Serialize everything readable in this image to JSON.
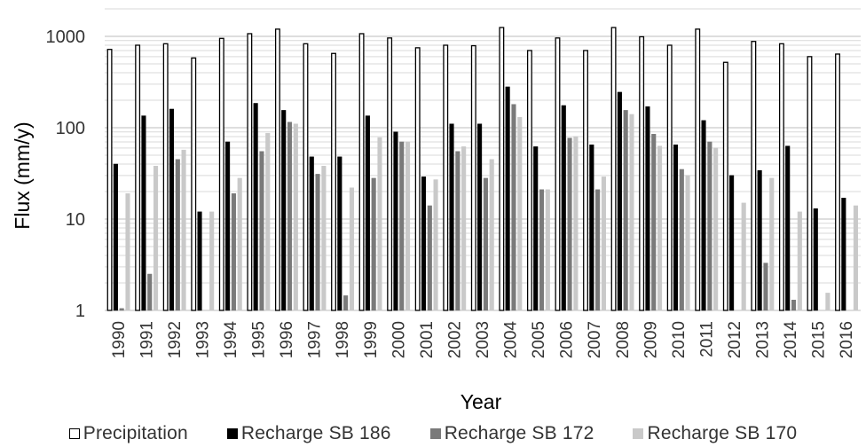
{
  "chart_data": {
    "type": "bar",
    "title": "",
    "xlabel": "Year",
    "ylabel": "Flux (mm/y)",
    "yscale": "log",
    "ylim": [
      1,
      2000
    ],
    "yticks": [
      "1",
      "10",
      "100",
      "1000"
    ],
    "grid": "horizontal",
    "legend_position": "bottom",
    "categories": [
      "1990",
      "1991",
      "1992",
      "1993",
      "1994",
      "1995",
      "1996",
      "1997",
      "1998",
      "1999",
      "2000",
      "2001",
      "2002",
      "2003",
      "2004",
      "2005",
      "2006",
      "2007",
      "2008",
      "2009",
      "2010",
      "2011",
      "2012",
      "2013",
      "2014",
      "2015",
      "2016"
    ],
    "series": [
      {
        "name": "Precipitation",
        "fill": "#ffffff",
        "stroke": "#000000",
        "values": [
          720,
          800,
          830,
          580,
          950,
          1070,
          1200,
          830,
          650,
          1070,
          960,
          750,
          800,
          790,
          1250,
          700,
          960,
          700,
          1250,
          990,
          800,
          1200,
          520,
          880,
          830,
          600,
          640
        ]
      },
      {
        "name": "Recharge SB 186",
        "fill": "#000000",
        "stroke": "#000000",
        "values": [
          40,
          135,
          160,
          12,
          70,
          185,
          155,
          48,
          48,
          135,
          90,
          29,
          110,
          110,
          280,
          62,
          175,
          65,
          245,
          170,
          65,
          120,
          30,
          34,
          63,
          13,
          17
        ]
      },
      {
        "name": "Recharge SB 172",
        "fill": "#7a7a7a",
        "stroke": "#7a7a7a",
        "values": [
          1.05,
          2.5,
          45,
          null,
          19,
          55,
          115,
          31,
          1.45,
          28,
          70,
          14,
          55,
          28,
          180,
          21,
          77,
          21,
          155,
          85,
          35,
          70,
          null,
          3.3,
          1.3,
          null,
          null
        ]
      },
      {
        "name": "Recharge SB 170",
        "fill": "#c9c9c9",
        "stroke": "#c9c9c9",
        "values": [
          19,
          38,
          57,
          12,
          28,
          87,
          110,
          38,
          22,
          78,
          70,
          27,
          62,
          45,
          130,
          21,
          80,
          29,
          140,
          63,
          30,
          60,
          15,
          28,
          12,
          1.55,
          14
        ]
      }
    ]
  }
}
